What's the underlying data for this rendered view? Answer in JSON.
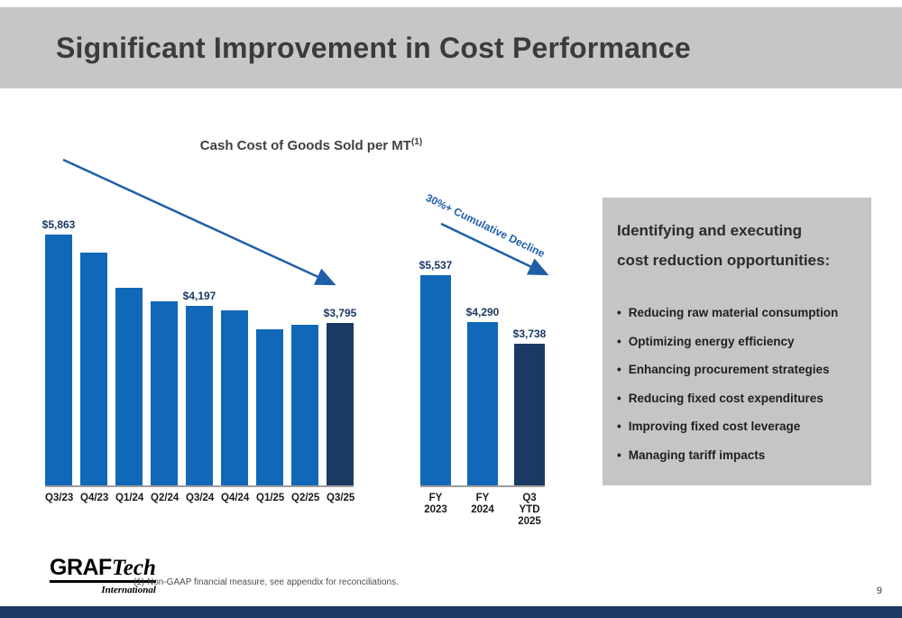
{
  "slide": {
    "title": "Significant Improvement in Cost Performance",
    "page_number": "9",
    "footnote": "(1)    Non-GAAP financial measure, see appendix for reconciliations.",
    "logo": {
      "part1": "GRAF",
      "part2": "Tech",
      "subtitle": "International"
    }
  },
  "chart_data": [
    {
      "type": "bar",
      "title": "Cash Cost of Goods Sold per MT",
      "title_superscript": "(1)",
      "categories": [
        "Q3/23",
        "Q4/23",
        "Q1/24",
        "Q2/24",
        "Q3/24",
        "Q4/24",
        "Q1/25",
        "Q2/25",
        "Q3/25"
      ],
      "values": [
        5863,
        5450,
        4620,
        4310,
        4197,
        4090,
        3650,
        3760,
        3795
      ],
      "data_labels": [
        "$5,863",
        "",
        "",
        "",
        "$4,197",
        "",
        "",
        "",
        "$3,795"
      ],
      "bar_color": "#1268B8",
      "highlight_color": "#1B3A63",
      "highlight_index": 8,
      "ylim": [
        0,
        6200
      ],
      "grid": false,
      "legend": "none",
      "annotation": "declining trend arrow"
    },
    {
      "type": "bar",
      "title": "",
      "categories": [
        "FY 2023",
        "FY 2024",
        "Q3 YTD\n2025"
      ],
      "values": [
        5537,
        4290,
        3738
      ],
      "data_labels": [
        "$5,537",
        "$4,290",
        "$3,738"
      ],
      "bar_color": "#1268B8",
      "highlight_color": "#1B3A63",
      "highlight_index": 2,
      "ylim": [
        0,
        6200
      ],
      "grid": false,
      "legend": "none",
      "annotation": "30%+ Cumulative Decline"
    }
  ],
  "panel": {
    "heading_lines": [
      "Identifying and executing",
      "cost reduction opportunities:"
    ],
    "bullet_char": "•",
    "bullets": [
      "Reducing raw material consumption",
      "Optimizing energy efficiency",
      "Enhancing procurement strategies",
      "Reducing fixed cost expenditures",
      "Improving fixed cost leverage",
      "Managing tariff impacts"
    ]
  },
  "colors": {
    "bar_blue": "#1268B8",
    "bar_navy": "#1B3A63",
    "arrow_blue": "#1F5FA8",
    "header_gray": "#C6C6C6",
    "panel_gray": "#C5C5C5",
    "footer_navy": "#1F3864"
  }
}
